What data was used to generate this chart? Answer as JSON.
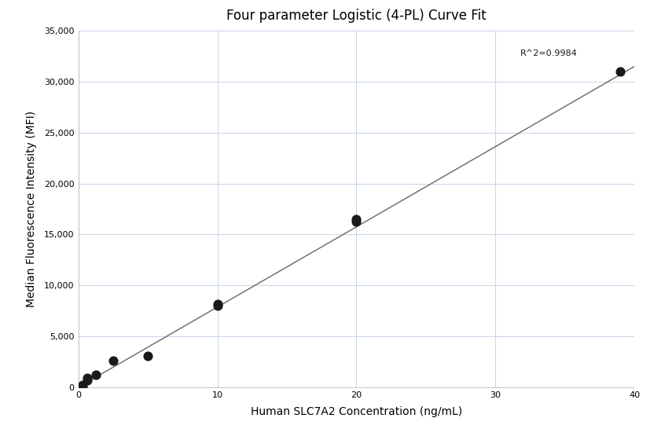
{
  "title": "Four parameter Logistic (4-PL) Curve Fit",
  "xlabel": "Human SLC7A2 Concentration (ng/mL)",
  "ylabel": "Median Fluorescence Intensity (MFI)",
  "scatter_x": [
    0.313,
    0.313,
    0.625,
    0.625,
    1.25,
    2.5,
    5.0,
    10.0,
    10.0,
    20.0,
    20.0,
    39.0
  ],
  "scatter_y": [
    100,
    200,
    700,
    900,
    1200,
    2600,
    3100,
    8000,
    8200,
    16300,
    16500,
    31000
  ],
  "line_x": [
    0.0,
    40.0
  ],
  "line_y": [
    0.0,
    31500
  ],
  "r_squared": "R^2=0.9984",
  "r2_x": 31.8,
  "r2_y": 32800,
  "xlim": [
    0,
    40
  ],
  "ylim": [
    0,
    35000
  ],
  "yticks": [
    0,
    5000,
    10000,
    15000,
    20000,
    25000,
    30000,
    35000
  ],
  "xticks": [
    0,
    10,
    20,
    30,
    40
  ],
  "bg_color": "#ffffff",
  "grid_color": "#c8d4e8",
  "line_color": "#666666",
  "scatter_color": "#1a1a1a",
  "scatter_size": 60,
  "title_fontsize": 12,
  "label_fontsize": 10,
  "tick_fontsize": 8,
  "annotation_fontsize": 8
}
